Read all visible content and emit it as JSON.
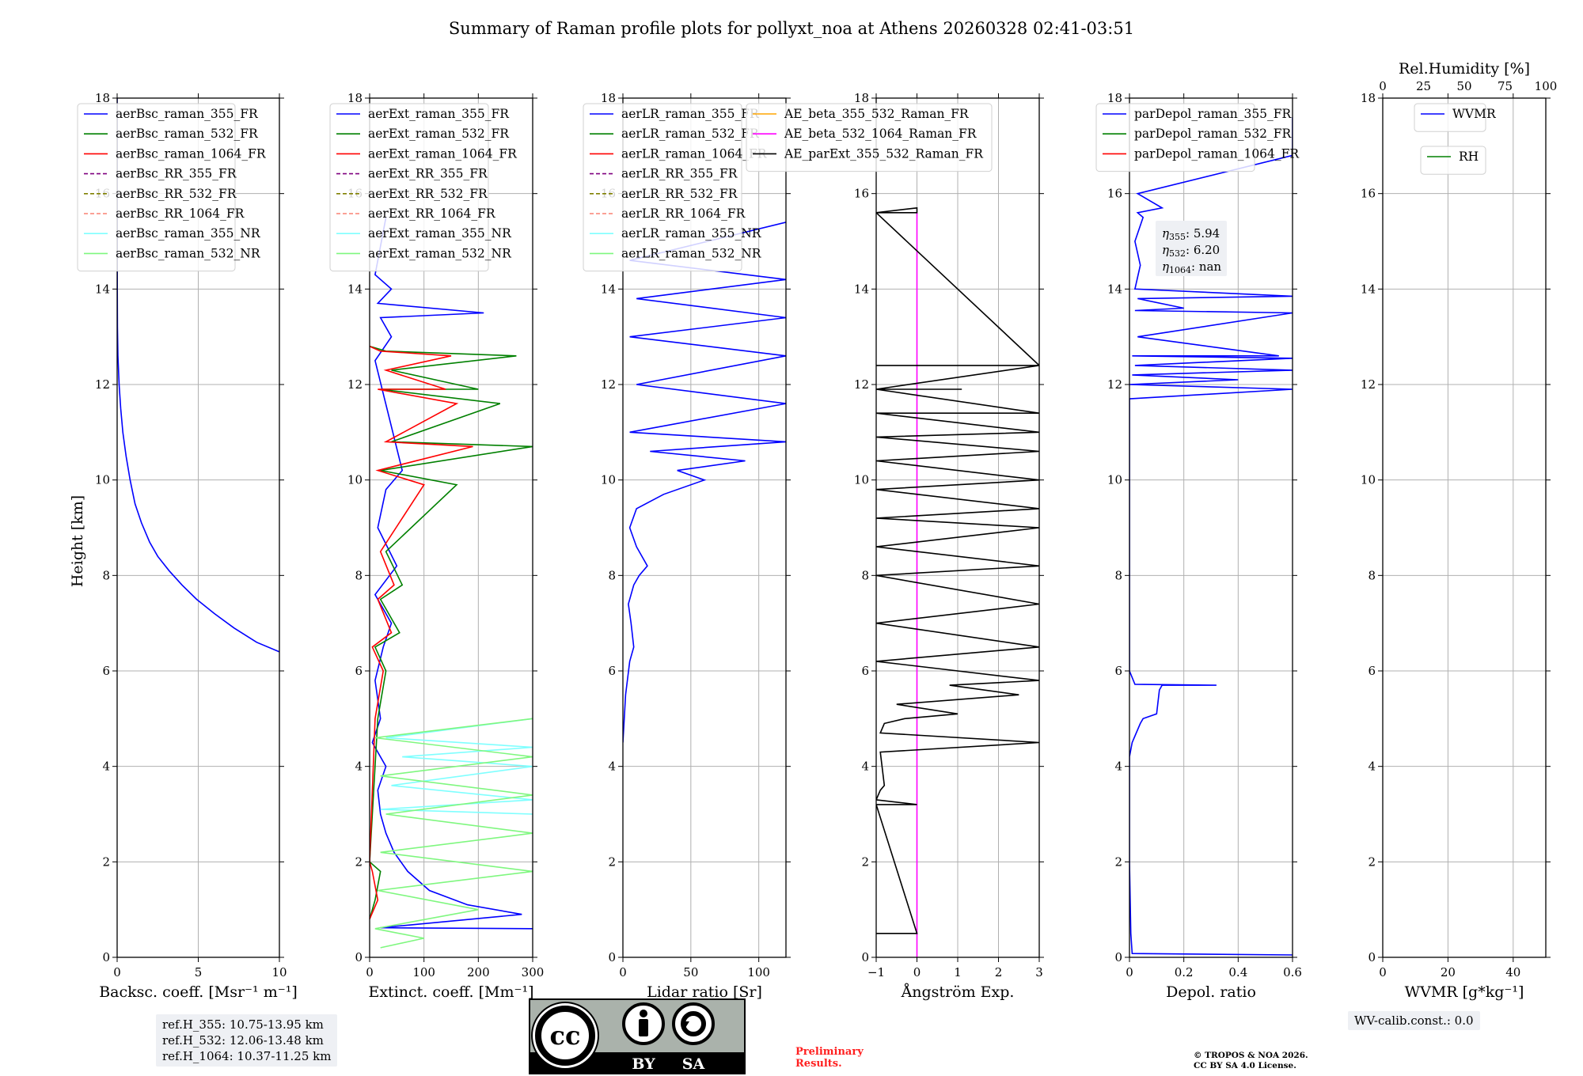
{
  "title": "Summary of Raman profile plots for pollyxt_noa at Athens 20260328 02:41-03:51",
  "ylabel": "Height [km]",
  "info": {
    "ref_h_355": "ref.H_355: 10.75-13.95 km",
    "ref_h_532": "ref.H_532: 12.06-13.48 km",
    "ref_h_1064": "ref.H_1064: 10.37-11.25 km",
    "wv_calib": "WV-calib.const.: 0.0",
    "preliminary_1": "Preliminary",
    "preliminary_2": "Results.",
    "copyright_1": "© TROPOS & NOA 2026.",
    "copyright_2": "CC BY SA 4.0 License.",
    "license_by": "BY",
    "license_sa": "SA",
    "license_cc": "cc"
  },
  "colors": {
    "blue": "#0000ff",
    "green": "#008000",
    "red": "#ff0000",
    "purple": "#800080",
    "olive": "#808000",
    "salmon": "#fa8072",
    "cyan": "#7fffff",
    "lightgreen": "#7ff77f",
    "orange": "#ffa500",
    "magenta": "#ff00ff",
    "black": "#000000",
    "grid": "#b0b0b0"
  },
  "chart_data": [
    {
      "type": "line",
      "id": "backscatter",
      "xlabel": "Backsc. coeff. [Msr⁻¹ m⁻¹]",
      "xlim": [
        0,
        10
      ],
      "ylim": [
        0,
        18
      ],
      "xticks": [
        0,
        5,
        10
      ],
      "yticks": [
        0,
        2,
        4,
        6,
        8,
        10,
        12,
        14,
        16,
        18
      ],
      "legend": [
        {
          "label": "aerBsc_raman_355_FR",
          "color": "blue",
          "dash": false
        },
        {
          "label": "aerBsc_raman_532_FR",
          "color": "green",
          "dash": false
        },
        {
          "label": "aerBsc_raman_1064_FR",
          "color": "red",
          "dash": false
        },
        {
          "label": "aerBsc_RR_355_FR",
          "color": "purple",
          "dash": true
        },
        {
          "label": "aerBsc_RR_532_FR",
          "color": "olive",
          "dash": true
        },
        {
          "label": "aerBsc_RR_1064_FR",
          "color": "salmon",
          "dash": true
        },
        {
          "label": "aerBsc_raman_355_NR",
          "color": "cyan",
          "dash": false
        },
        {
          "label": "aerBsc_raman_532_NR",
          "color": "lightgreen",
          "dash": false
        }
      ],
      "series": [
        {
          "name": "aerBsc_raman_355_FR",
          "color": "blue",
          "x": [
            10,
            8.6,
            7.2,
            6.0,
            4.9,
            4.0,
            3.2,
            2.5,
            2.0,
            1.5,
            1.1,
            0.8,
            0.55,
            0.35,
            0.22,
            0.12,
            0.05,
            0.02,
            0.01,
            0.0
          ],
          "y": [
            6.4,
            6.6,
            6.9,
            7.2,
            7.5,
            7.8,
            8.1,
            8.4,
            8.7,
            9.1,
            9.5,
            10.0,
            10.5,
            11.0,
            11.5,
            12.0,
            12.6,
            13.2,
            14.0,
            18.0
          ]
        }
      ]
    },
    {
      "type": "line",
      "id": "extinction",
      "xlabel": "Extinct. coeff. [Mm⁻¹]",
      "xlim": [
        0,
        300
      ],
      "ylim": [
        0,
        18
      ],
      "xticks": [
        0,
        100,
        200,
        300
      ],
      "yticks": [
        0,
        2,
        4,
        6,
        8,
        10,
        12,
        14,
        16,
        18
      ],
      "legend": [
        {
          "label": "aerExt_raman_355_FR",
          "color": "blue",
          "dash": false
        },
        {
          "label": "aerExt_raman_532_FR",
          "color": "green",
          "dash": false
        },
        {
          "label": "aerExt_raman_1064_FR",
          "color": "red",
          "dash": false
        },
        {
          "label": "aerExt_RR_355_FR",
          "color": "purple",
          "dash": true
        },
        {
          "label": "aerExt_RR_532_FR",
          "color": "olive",
          "dash": true
        },
        {
          "label": "aerExt_RR_1064_FR",
          "color": "salmon",
          "dash": true
        },
        {
          "label": "aerExt_raman_355_NR",
          "color": "cyan",
          "dash": false
        },
        {
          "label": "aerExt_raman_532_NR",
          "color": "lightgreen",
          "dash": false
        }
      ],
      "series": [
        {
          "name": "aerExt_raman_355_FR",
          "color": "blue",
          "x": [
            300,
            20,
            280,
            180,
            110,
            70,
            45,
            30,
            20,
            15,
            30,
            5,
            20,
            10,
            25,
            40,
            10,
            50,
            15,
            30,
            60,
            10,
            40,
            20,
            210,
            15,
            40,
            10,
            30
          ],
          "y": [
            0.6,
            0.62,
            0.9,
            1.1,
            1.4,
            1.8,
            2.2,
            2.6,
            3.0,
            3.5,
            4.0,
            4.5,
            5.0,
            5.8,
            6.5,
            7.0,
            7.6,
            8.2,
            9.0,
            9.8,
            10.2,
            12.5,
            13.0,
            13.4,
            13.5,
            13.7,
            14.0,
            14.3,
            15.5
          ]
        },
        {
          "name": "aerExt_raman_532_FR",
          "color": "green",
          "x": [
            0,
            10,
            20,
            0,
            15,
            30,
            10,
            55,
            20,
            60,
            30,
            160,
            20,
            300,
            40,
            240,
            20,
            200,
            40,
            270,
            30,
            0
          ],
          "y": [
            0.8,
            1.2,
            1.8,
            2.0,
            5.0,
            6.0,
            6.5,
            6.8,
            7.5,
            7.8,
            8.5,
            9.9,
            10.2,
            10.7,
            10.8,
            11.6,
            11.9,
            11.9,
            12.3,
            12.6,
            12.7,
            12.8
          ]
        },
        {
          "name": "aerExt_raman_1064_FR",
          "color": "red",
          "x": [
            0,
            15,
            5,
            0,
            10,
            25,
            5,
            40,
            15,
            45,
            20,
            100,
            15,
            190,
            30,
            160,
            15,
            140,
            30,
            150,
            20,
            0
          ],
          "y": [
            0.8,
            1.2,
            1.8,
            2.0,
            5.0,
            6.0,
            6.5,
            6.8,
            7.5,
            7.8,
            8.5,
            9.9,
            10.2,
            10.7,
            10.8,
            11.6,
            11.9,
            11.9,
            12.3,
            12.6,
            12.7,
            12.8
          ]
        },
        {
          "name": "aerExt_raman_355_NR",
          "color": "cyan",
          "x": [
            300,
            20,
            300,
            40,
            300,
            60,
            300,
            30,
            300
          ],
          "y": [
            3.0,
            3.1,
            3.3,
            3.6,
            4.0,
            4.2,
            4.4,
            4.6,
            5.0
          ]
        },
        {
          "name": "aerExt_raman_532_NR",
          "color": "lightgreen",
          "x": [
            20,
            100,
            10,
            200,
            15,
            300,
            20,
            300,
            30,
            300,
            20,
            300,
            10,
            300
          ],
          "y": [
            0.2,
            0.4,
            0.6,
            1.0,
            1.4,
            1.8,
            2.2,
            2.6,
            3.0,
            3.4,
            3.8,
            4.2,
            4.6,
            5.0
          ]
        }
      ]
    },
    {
      "type": "line",
      "id": "lidar_ratio",
      "xlabel": "Lidar ratio [Sr]",
      "xlim": [
        0,
        120
      ],
      "ylim": [
        0,
        18
      ],
      "xticks": [
        0,
        50,
        100
      ],
      "yticks": [
        0,
        2,
        4,
        6,
        8,
        10,
        12,
        14,
        16,
        18
      ],
      "legend": [
        {
          "label": "aerLR_raman_355_FR",
          "color": "blue",
          "dash": false
        },
        {
          "label": "aerLR_raman_532_FR",
          "color": "green",
          "dash": false
        },
        {
          "label": "aerLR_raman_1064_FR",
          "color": "red",
          "dash": false
        },
        {
          "label": "aerLR_RR_355_FR",
          "color": "purple",
          "dash": true
        },
        {
          "label": "aerLR_RR_532_FR",
          "color": "olive",
          "dash": true
        },
        {
          "label": "aerLR_RR_1064_FR",
          "color": "salmon",
          "dash": true
        },
        {
          "label": "aerLR_raman_355_NR",
          "color": "cyan",
          "dash": false
        },
        {
          "label": "aerLR_raman_532_NR",
          "color": "lightgreen",
          "dash": false
        }
      ],
      "series": [
        {
          "name": "aerLR_raman_355_FR",
          "color": "blue",
          "x": [
            0,
            2,
            5,
            8,
            6,
            4,
            8,
            12,
            18,
            10,
            5,
            10,
            30,
            60,
            40,
            90,
            20,
            120,
            5,
            120,
            10,
            120,
            5,
            120,
            10,
            120,
            5,
            120
          ],
          "y": [
            4.5,
            5.5,
            6.2,
            6.5,
            7.0,
            7.4,
            7.8,
            8.0,
            8.2,
            8.6,
            9.0,
            9.4,
            9.7,
            10.0,
            10.2,
            10.4,
            10.6,
            10.8,
            11.0,
            11.6,
            12.0,
            12.6,
            13.0,
            13.4,
            13.8,
            14.2,
            14.6,
            15.4
          ]
        }
      ]
    },
    {
      "type": "line",
      "id": "angstrom",
      "xlabel": "Ångström Exp.",
      "xlim": [
        -1,
        3
      ],
      "ylim": [
        0,
        18
      ],
      "xticks": [
        -1,
        0,
        1,
        2,
        3
      ],
      "yticks": [
        0,
        2,
        4,
        6,
        8,
        10,
        12,
        14,
        16,
        18
      ],
      "legend": [
        {
          "label": "AE_beta_355_532_Raman_FR",
          "color": "orange",
          "dash": false
        },
        {
          "label": "AE_beta_532_1064_Raman_FR",
          "color": "magenta",
          "dash": false
        },
        {
          "label": "AE_parExt_355_532_Raman_FR",
          "color": "black",
          "dash": false
        }
      ],
      "series": [
        {
          "name": "AE_beta_532_1064_Raman_FR",
          "color": "magenta",
          "x": [
            0,
            0
          ],
          "y": [
            0,
            15.6
          ]
        },
        {
          "name": "AE_parExt_355_532_Raman_FR",
          "color": "black",
          "x": [
            -1,
            0,
            -1,
            0,
            -1,
            -0.9,
            -0.8,
            -0.9,
            3,
            -0.9,
            -0.8,
            -0.3,
            1.0,
            -0.5,
            2.5,
            0.8,
            3,
            -1,
            3,
            -1,
            3,
            -1,
            3,
            -1,
            3,
            -1,
            3,
            -1,
            3,
            -1,
            3,
            -1,
            3,
            -1,
            3,
            -1,
            1.1,
            -1,
            3,
            -1,
            3,
            -1,
            0,
            0,
            -1
          ],
          "y": [
            0.5,
            0.5,
            3.2,
            3.2,
            3.3,
            3.5,
            3.6,
            4.3,
            4.5,
            4.7,
            4.9,
            5.0,
            5.1,
            5.3,
            5.5,
            5.7,
            5.8,
            6.2,
            6.5,
            7.0,
            7.4,
            8.0,
            8.2,
            8.6,
            9.0,
            9.2,
            9.4,
            9.8,
            10.0,
            10.4,
            10.6,
            10.9,
            11.0,
            11.4,
            11.4,
            11.9,
            11.9,
            11.9,
            12.4,
            12.4,
            12.4,
            15.6,
            15.6,
            15.7,
            15.6
          ]
        }
      ]
    },
    {
      "type": "line",
      "id": "depol",
      "xlabel": "Depol. ratio",
      "xlim": [
        0,
        0.6
      ],
      "ylim": [
        0,
        18
      ],
      "xticks": [
        0.0,
        0.2,
        0.4,
        0.6
      ],
      "yticks": [
        0,
        2,
        4,
        6,
        8,
        10,
        12,
        14,
        16,
        18
      ],
      "legend": [
        {
          "label": "parDepol_raman_355_FR",
          "color": "blue",
          "dash": false
        },
        {
          "label": "parDepol_raman_532_FR",
          "color": "green",
          "dash": false
        },
        {
          "label": "parDepol_raman_1064_FR",
          "color": "red",
          "dash": false
        }
      ],
      "annotation": [
        "η355: 5.94",
        "η532: 6.20",
        "η1064: nan"
      ],
      "series": [
        {
          "name": "parDepol_raman_355_FR",
          "color": "blue",
          "x": [
            0.6,
            0.01,
            0.005,
            0.0,
            0.0,
            0.01,
            0.04,
            0.05,
            0.1,
            0.11,
            0.12,
            0.32,
            0.02,
            0.0,
            0.0,
            0.6,
            0.0,
            0.4,
            0.01,
            0.6,
            0.02,
            0.6,
            0.01,
            0.55,
            0.03,
            0.6,
            0.02,
            0.2,
            0.03,
            0.6,
            0.02,
            0.04,
            0.02,
            0.05,
            0.03,
            0.12,
            0.03,
            0.6,
            0.6
          ],
          "y": [
            0.05,
            0.08,
            0.5,
            2.0,
            4.2,
            4.5,
            4.9,
            5.0,
            5.1,
            5.6,
            5.7,
            5.7,
            5.72,
            6.0,
            11.7,
            11.9,
            12.0,
            12.1,
            12.2,
            12.3,
            12.4,
            12.55,
            12.6,
            12.6,
            13.0,
            13.5,
            13.55,
            13.6,
            13.8,
            13.85,
            14.0,
            14.5,
            15.0,
            15.5,
            15.6,
            15.7,
            16.0,
            16.8,
            17.6
          ]
        }
      ]
    },
    {
      "type": "line",
      "id": "wvmr",
      "xlabel": "WVMR [g*kg⁻¹]",
      "xlim": [
        0,
        50
      ],
      "ylim": [
        0,
        18
      ],
      "xticks": [
        0,
        20,
        40
      ],
      "yticks": [
        0,
        2,
        4,
        6,
        8,
        10,
        12,
        14,
        16,
        18
      ],
      "x2label": "Rel.Humidity [%]",
      "x2lim": [
        0,
        100
      ],
      "x2ticks": [
        0,
        25,
        50,
        75,
        100
      ],
      "legend": [
        {
          "label": "WVMR",
          "color": "blue",
          "dash": false
        }
      ],
      "legend2": [
        {
          "label": "RH",
          "color": "green",
          "dash": false
        }
      ],
      "series": []
    }
  ]
}
